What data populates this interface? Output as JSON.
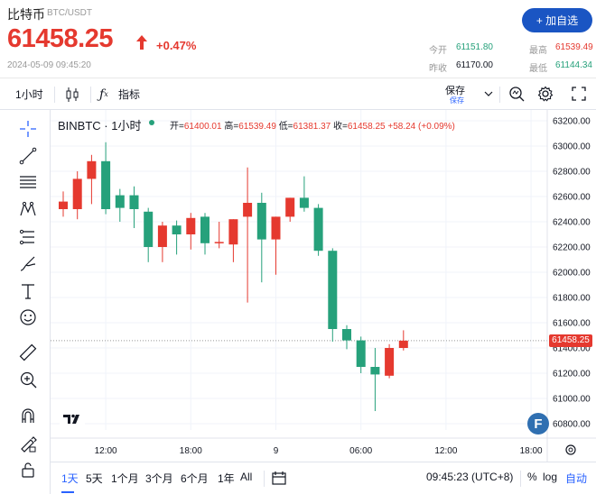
{
  "header": {
    "name": "比特币",
    "pair": "BTC/USDT",
    "price": "61458.25",
    "change": "+0.47%",
    "datetime": "2024-05-09 09:45:20",
    "follow_button": "+ 加自选",
    "stats": {
      "open_label": "今开",
      "open_value": "61151.80",
      "high_label": "最高",
      "high_value": "61539.49",
      "prev_label": "昨收",
      "prev_value": "61170.00",
      "low_label": "最低",
      "low_value": "61144.34"
    },
    "colors": {
      "up": "#e5392f",
      "down": "#26a17b",
      "accent": "#1a55c3"
    }
  },
  "toolbar": {
    "interval": "1小时",
    "candle_icon": "candlestick-icon",
    "indicators_label": "指标",
    "save_label": "保存",
    "save_sub": "保存",
    "icons": [
      "chevron-down-icon",
      "quick-search-icon",
      "gear-icon",
      "fullscreen-icon"
    ]
  },
  "left_tools": [
    "crosshair-icon",
    "trend-line-icon",
    "fib-lines-icon",
    "pattern-icon",
    "projection-icon",
    "brush-icon",
    "text-icon",
    "emoji-icon",
    "ruler-icon",
    "zoom-in-icon",
    "magnet-icon",
    "lock-drawing-icon",
    "lock-icon"
  ],
  "legend": {
    "symbol": "BINBTC · 1小时",
    "open_label": "开=",
    "open": "61400.01",
    "high_label": "高=",
    "high": "61539.49",
    "low_label": "低=",
    "low": "61381.37",
    "close_label": "收=",
    "close": "61458.25",
    "change": "+58.24 (+0.09%)"
  },
  "chart_data": {
    "type": "candlestick",
    "ylim": [
      60700,
      63300
    ],
    "y_ticks": [
      "63200.00",
      "63000.00",
      "62800.00",
      "62600.00",
      "62400.00",
      "62200.00",
      "62000.00",
      "61800.00",
      "61600.00",
      "61400.00",
      "61200.00",
      "61000.00",
      "60800.00"
    ],
    "x_ticks": [
      {
        "label": "12:00",
        "index": 3
      },
      {
        "label": "18:00",
        "index": 9
      },
      {
        "label": "9",
        "index": 15
      },
      {
        "label": "06:00",
        "index": 21
      },
      {
        "label": "12:00",
        "index": 27
      },
      {
        "label": "18:00",
        "index": 33
      }
    ],
    "last_price": "61458.25",
    "last_value": 61458.25,
    "candles": [
      {
        "o": 62500,
        "h": 62640,
        "l": 62440,
        "c": 62560
      },
      {
        "o": 62500,
        "h": 62800,
        "l": 62420,
        "c": 62740
      },
      {
        "o": 62740,
        "h": 62930,
        "l": 62540,
        "c": 62880
      },
      {
        "o": 62880,
        "h": 63030,
        "l": 62460,
        "c": 62500
      },
      {
        "o": 62610,
        "h": 62660,
        "l": 62400,
        "c": 62510
      },
      {
        "o": 62610,
        "h": 62680,
        "l": 62350,
        "c": 62500
      },
      {
        "o": 62480,
        "h": 62510,
        "l": 62080,
        "c": 62200
      },
      {
        "o": 62200,
        "h": 62400,
        "l": 62080,
        "c": 62370
      },
      {
        "o": 62370,
        "h": 62410,
        "l": 62140,
        "c": 62300
      },
      {
        "o": 62300,
        "h": 62470,
        "l": 62180,
        "c": 62430
      },
      {
        "o": 62440,
        "h": 62470,
        "l": 62140,
        "c": 62230
      },
      {
        "o": 62230,
        "h": 62400,
        "l": 62190,
        "c": 62240
      },
      {
        "o": 62220,
        "h": 62420,
        "l": 62080,
        "c": 62420
      },
      {
        "o": 62440,
        "h": 62830,
        "l": 61760,
        "c": 62550
      },
      {
        "o": 62550,
        "h": 62630,
        "l": 61920,
        "c": 62260
      },
      {
        "o": 62260,
        "h": 62440,
        "l": 61980,
        "c": 62440
      },
      {
        "o": 62440,
        "h": 62590,
        "l": 62400,
        "c": 62590
      },
      {
        "o": 62590,
        "h": 62760,
        "l": 62480,
        "c": 62510
      },
      {
        "o": 62510,
        "h": 62540,
        "l": 62130,
        "c": 62170
      },
      {
        "o": 62170,
        "h": 62190,
        "l": 61450,
        "c": 61550
      },
      {
        "o": 61550,
        "h": 61580,
        "l": 61390,
        "c": 61460
      },
      {
        "o": 61460,
        "h": 61490,
        "l": 61200,
        "c": 61250
      },
      {
        "o": 61250,
        "h": 61400,
        "l": 60900,
        "c": 61190
      },
      {
        "o": 61180,
        "h": 61430,
        "l": 61160,
        "c": 61400
      },
      {
        "o": 61400,
        "h": 61540,
        "l": 61380,
        "c": 61458
      }
    ]
  },
  "bottom": {
    "ranges": [
      "1天",
      "5天",
      "1个月",
      "3个月",
      "6个月",
      "1年",
      "All"
    ],
    "active_range": "1天",
    "time": "09:45:23 (UTC+8)",
    "percent": "%",
    "log": "log",
    "auto": "自动"
  }
}
